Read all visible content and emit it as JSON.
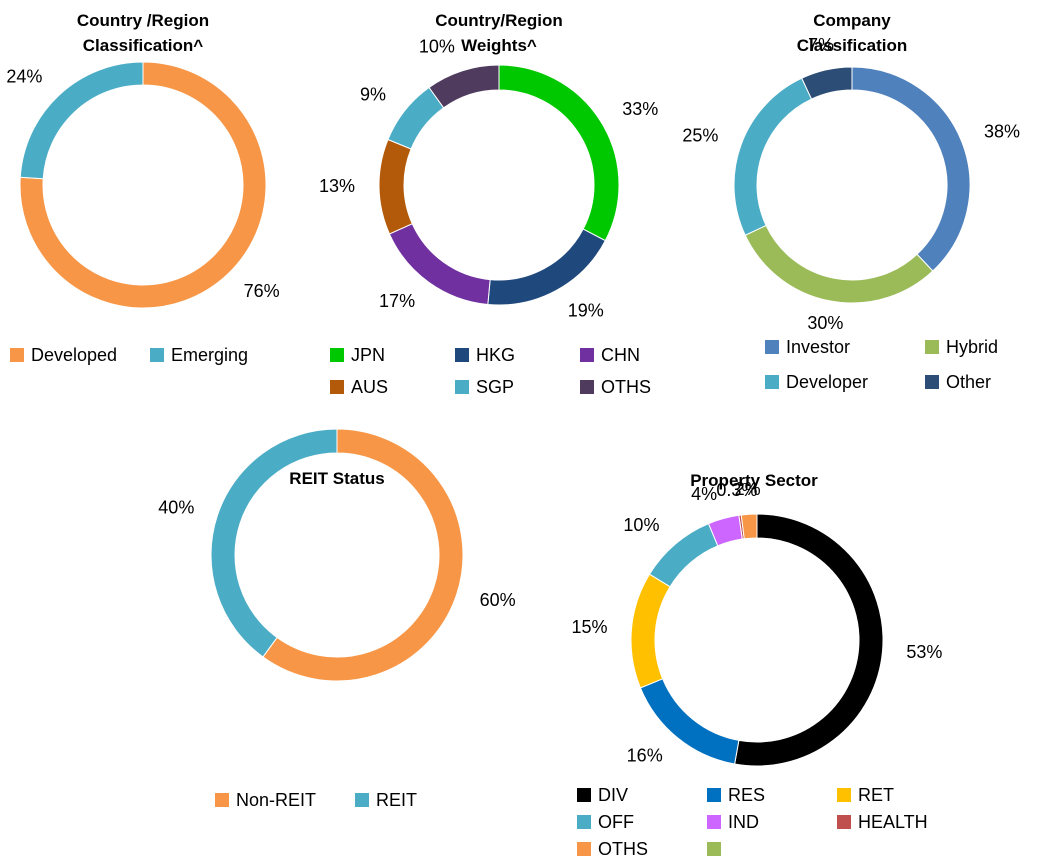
{
  "chart_data": [
    {
      "type": "pie",
      "title": "Country /Region Classification^",
      "categories": [
        "Developed",
        "Emerging"
      ],
      "values": [
        76,
        24
      ],
      "value_labels": [
        "76%",
        "24%"
      ],
      "colors": [
        "#f79646",
        "#4bacc6"
      ]
    },
    {
      "type": "pie",
      "title": "Country/Region Weights^",
      "categories": [
        "JPN",
        "HKG",
        "CHN",
        "AUS",
        "SGP",
        "OTHS"
      ],
      "values": [
        33,
        19,
        17,
        13,
        9,
        10
      ],
      "value_labels": [
        "33%",
        "19%",
        "17%",
        "13%",
        "9%",
        "10%"
      ],
      "colors": [
        "#00c800",
        "#1f497d",
        "#7030a0",
        "#b35a0a",
        "#4bacc6",
        "#4f3b5e"
      ]
    },
    {
      "type": "pie",
      "title": "Company Classification",
      "categories": [
        "Investor",
        "Hybrid",
        "Developer",
        "Other"
      ],
      "values": [
        38,
        30,
        25,
        7
      ],
      "value_labels": [
        "38%",
        "30%",
        "25%",
        "7%"
      ],
      "colors": [
        "#4f81bd",
        "#9bbb59",
        "#4bacc6",
        "#2c4d75"
      ]
    },
    {
      "type": "pie",
      "title": "REIT Status",
      "categories": [
        "Non-REIT",
        "REIT"
      ],
      "values": [
        60,
        40
      ],
      "value_labels": [
        "60%",
        "40%"
      ],
      "colors": [
        "#f79646",
        "#4bacc6"
      ]
    },
    {
      "type": "pie",
      "title": "Property Sector",
      "categories": [
        "DIV",
        "RES",
        "RET",
        "OFF",
        "IND",
        "HEALTH",
        "OTHS",
        null
      ],
      "values": [
        53,
        16,
        15,
        10,
        4,
        0.3,
        2,
        0
      ],
      "value_labels": [
        "53%",
        "16%",
        "15%",
        "10%",
        "4%",
        "0.3%",
        "2%",
        null
      ],
      "colors": [
        "#000000",
        "#0070c0",
        "#ffc000",
        "#4bacc6",
        "#cc66ff",
        "#c0504d",
        "#f79646",
        "#9bbb59"
      ]
    }
  ]
}
